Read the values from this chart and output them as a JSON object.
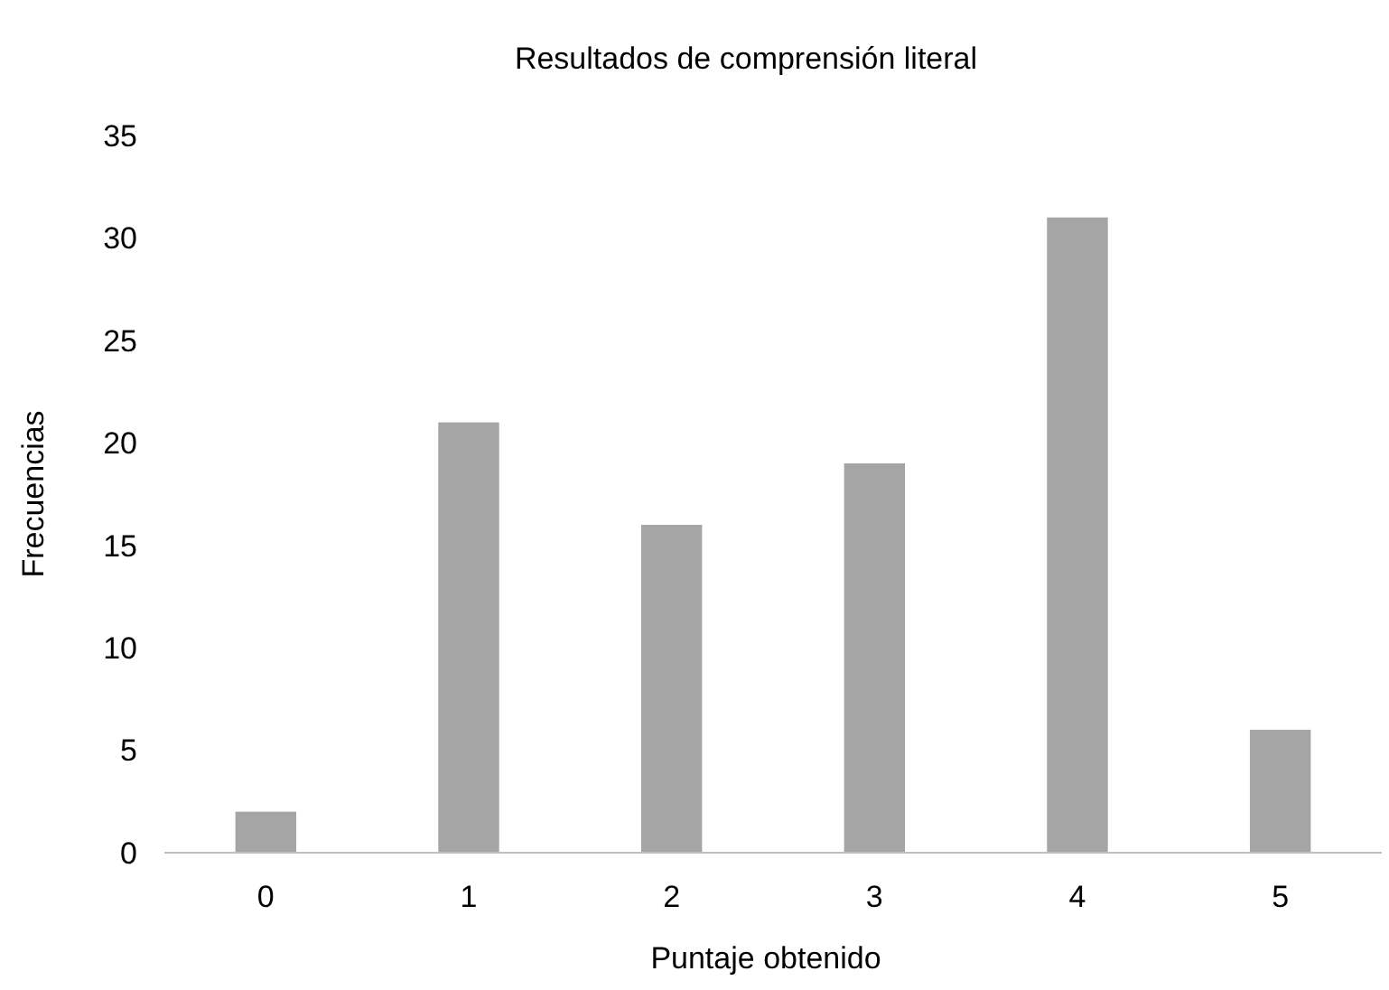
{
  "chart_data": {
    "type": "bar",
    "title": "Resultados de comprensión literal",
    "xlabel": "Puntaje obtenido",
    "ylabel": "Frecuencias",
    "categories": [
      "0",
      "1",
      "2",
      "3",
      "4",
      "5"
    ],
    "values": [
      2,
      21,
      16,
      19,
      31,
      6
    ],
    "color": "#a5a5a5",
    "ylim": [
      0,
      35
    ],
    "yticks": [
      0,
      5,
      10,
      15,
      20,
      25,
      30,
      35
    ],
    "grid": false
  }
}
